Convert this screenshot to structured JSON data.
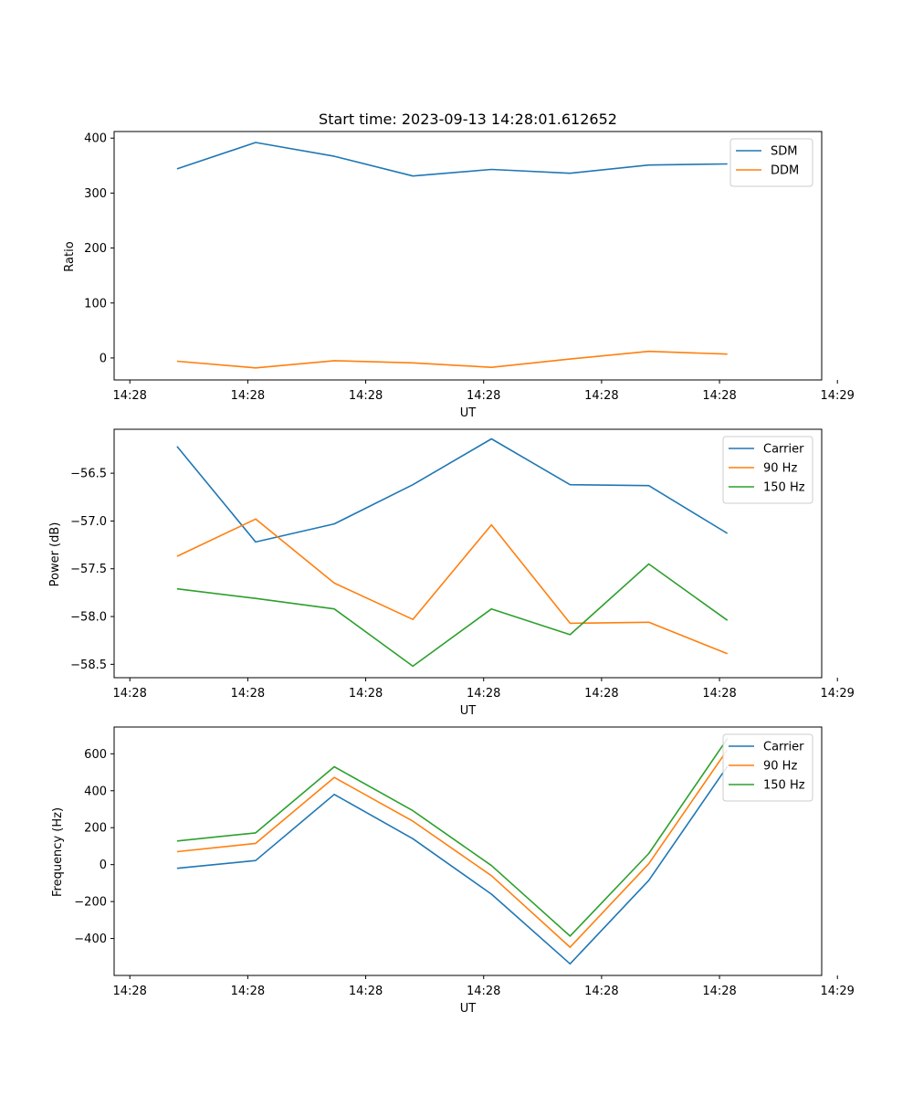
{
  "chart_data": [
    {
      "type": "line",
      "title": "Start time: 2023-09-13 14:28:01.612652",
      "xlabel": "UT",
      "ylabel": "Ratio",
      "x": [
        1,
        2,
        3,
        4,
        5,
        6,
        7,
        8
      ],
      "xlim": [
        0.2,
        9.2
      ],
      "xticks": [
        0.4,
        1.9,
        3.4,
        4.9,
        6.4,
        7.9,
        9.4
      ],
      "xtick_labels": [
        "14:28",
        "14:28",
        "14:28",
        "14:28",
        "14:28",
        "14:28",
        "14:29"
      ],
      "ylim": [
        -40,
        412
      ],
      "yticks": [
        0,
        100,
        200,
        300,
        400
      ],
      "ytick_labels": [
        "0",
        "100",
        "200",
        "300",
        "400"
      ],
      "legend": "top-right",
      "series": [
        {
          "name": "SDM",
          "color": "#1f77b4",
          "values": [
            344,
            392,
            367,
            331,
            343,
            336,
            351,
            353
          ]
        },
        {
          "name": "DDM",
          "color": "#ff7f0e",
          "values": [
            -6,
            -18,
            -5,
            -9,
            -17,
            -2,
            12,
            7
          ]
        }
      ]
    },
    {
      "type": "line",
      "title": "",
      "xlabel": "UT",
      "ylabel": "Power (dB)",
      "x": [
        1,
        2,
        3,
        4,
        5,
        6,
        7,
        8
      ],
      "xlim": [
        0.2,
        9.2
      ],
      "xticks": [
        0.4,
        1.9,
        3.4,
        4.9,
        6.4,
        7.9,
        9.4
      ],
      "xtick_labels": [
        "14:28",
        "14:28",
        "14:28",
        "14:28",
        "14:28",
        "14:28",
        "14:29"
      ],
      "ylim": [
        -58.64,
        -56.04
      ],
      "yticks": [
        -56.5,
        -57.0,
        -57.5,
        -58.0,
        -58.5
      ],
      "ytick_labels": [
        "−56.5",
        "−57.0",
        "−57.5",
        "−58.0",
        "−58.5"
      ],
      "legend": "top-right",
      "series": [
        {
          "name": "Carrier",
          "color": "#1f77b4",
          "values": [
            -56.22,
            -57.22,
            -57.03,
            -56.62,
            -56.14,
            -56.62,
            -56.63,
            -57.13
          ]
        },
        {
          "name": "90 Hz",
          "color": "#ff7f0e",
          "values": [
            -57.37,
            -56.98,
            -57.65,
            -58.03,
            -57.04,
            -58.07,
            -58.06,
            -58.39
          ]
        },
        {
          "name": "150 Hz",
          "color": "#2ca02c",
          "values": [
            -57.71,
            -57.81,
            -57.92,
            -58.52,
            -57.92,
            -58.19,
            -57.45,
            -58.04
          ]
        }
      ]
    },
    {
      "type": "line",
      "title": "",
      "xlabel": "UT",
      "ylabel": "Frequency (Hz)",
      "x": [
        1,
        2,
        3,
        4,
        5,
        6,
        7,
        8
      ],
      "xlim": [
        0.2,
        9.2
      ],
      "xticks": [
        0.4,
        1.9,
        3.4,
        4.9,
        6.4,
        7.9,
        9.4
      ],
      "xtick_labels": [
        "14:28",
        "14:28",
        "14:28",
        "14:28",
        "14:28",
        "14:28",
        "14:29"
      ],
      "ylim": [
        -600,
        745
      ],
      "yticks": [
        600,
        400,
        200,
        0,
        -200,
        -400
      ],
      "ytick_labels": [
        "600",
        "400",
        "200",
        "0",
        "−200",
        "−400"
      ],
      "legend": "top-right",
      "series": [
        {
          "name": "Carrier",
          "color": "#1f77b4",
          "values": [
            -20,
            22,
            380,
            140,
            -160,
            -537,
            -85,
            532
          ]
        },
        {
          "name": "90 Hz",
          "color": "#ff7f0e",
          "values": [
            70,
            115,
            472,
            235,
            -60,
            -447,
            5,
            622
          ]
        },
        {
          "name": "150 Hz",
          "color": "#2ca02c",
          "values": [
            128,
            172,
            530,
            292,
            -5,
            -387,
            60,
            682
          ]
        }
      ]
    }
  ]
}
